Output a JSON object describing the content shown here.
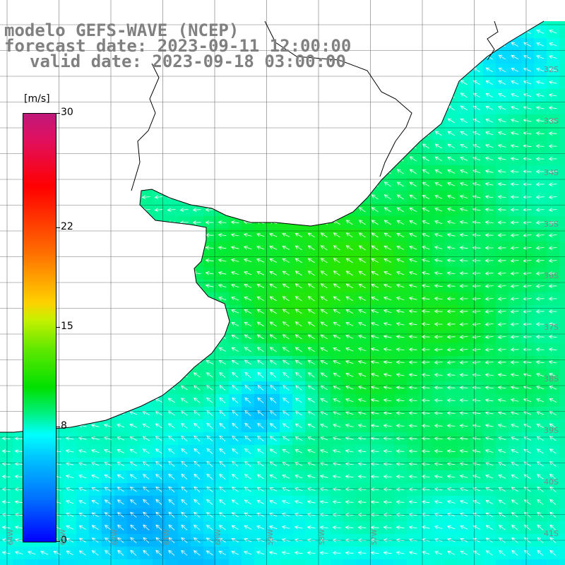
{
  "header": {
    "model_line": "modelo GEFS-WAVE (NCEP)",
    "forecast_line": "forecast date: 2023-09-11 12:00:00",
    "valid_line": "valid date: 2023-09-18 03:00:00"
  },
  "legend": {
    "unit": "[m/s]",
    "ticks": [
      "30",
      "22",
      "15",
      "8",
      "0"
    ],
    "tick_values": [
      30,
      22,
      15,
      8,
      0
    ],
    "range": [
      0,
      30
    ],
    "colors": [
      "#0000ff",
      "#0070ff",
      "#00c8ff",
      "#00ffff",
      "#00f080",
      "#00e000",
      "#60e800",
      "#c8f000",
      "#ffd000",
      "#ff6a00",
      "#ff0000",
      "#e01060",
      "#c0187a"
    ]
  },
  "axes": {
    "lat_labels": [
      "32S",
      "33S",
      "34S",
      "35S",
      "36S",
      "37S",
      "38S",
      "39S",
      "40S",
      "41S"
    ],
    "lon_labels": [
      "64W",
      "63W",
      "62W",
      "61W",
      "60W",
      "59W",
      "58W",
      "57W"
    ]
  },
  "colors": {
    "land": "#ffffff",
    "coast": "#000000",
    "grid": "#000000",
    "arrow": "#ffffff",
    "label": "#808080"
  },
  "map_field": {
    "variable": "wind speed",
    "unit": "m/s",
    "dominant_speed_ms": "8-13"
  }
}
